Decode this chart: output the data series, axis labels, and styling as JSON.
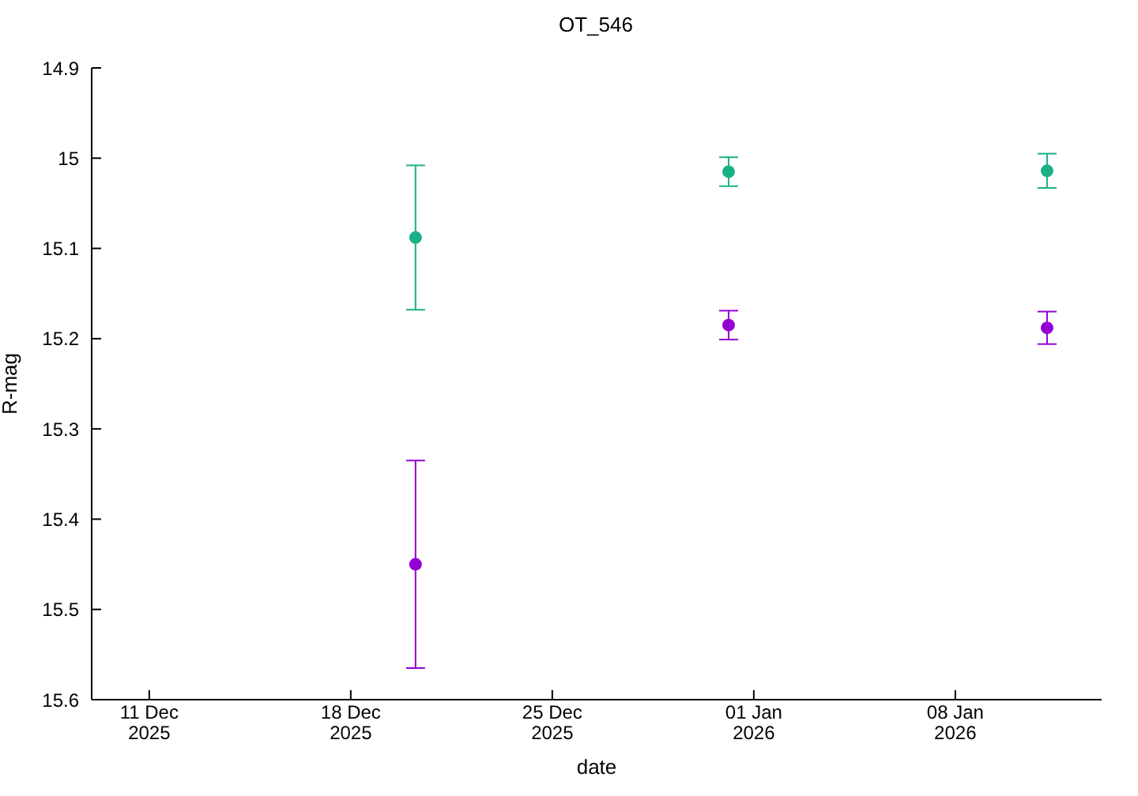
{
  "chart_data": {
    "type": "scatter",
    "title": "OT_546",
    "xlabel": "date",
    "ylabel": "R-mag",
    "xlim": [
      "2025-12-09",
      "2026-01-13T02:00"
    ],
    "xticks": [
      {
        "value": "2025-12-11",
        "label": "11 Dec 2025"
      },
      {
        "value": "2025-12-18",
        "label": "18 Dec 2025"
      },
      {
        "value": "2025-12-25",
        "label": "25 Dec 2025"
      },
      {
        "value": "2026-01-01",
        "label": "01 Jan 2026"
      },
      {
        "value": "2026-01-08",
        "label": "08 Jan 2026"
      }
    ],
    "ylim": [
      15.6,
      14.9
    ],
    "yticks": [
      14.9,
      15,
      15.1,
      15.2,
      15.3,
      15.4,
      15.5,
      15.6
    ],
    "grid": false,
    "legend": false,
    "marker": "circle",
    "series": [
      {
        "color": "#1ab087",
        "x": [
          "2025-12-20T06:00",
          "2025-12-31T03:00",
          "2026-01-11T04:30"
        ],
        "values": [
          15.088,
          15.015,
          15.014
        ],
        "errors": [
          0.08,
          0.016,
          0.019
        ]
      },
      {
        "color": "#9400d3",
        "x": [
          "2025-12-20T06:00",
          "2025-12-31T03:00",
          "2026-01-11T04:30"
        ],
        "values": [
          15.45,
          15.185,
          15.188
        ],
        "errors": [
          0.115,
          0.016,
          0.018
        ]
      }
    ]
  }
}
